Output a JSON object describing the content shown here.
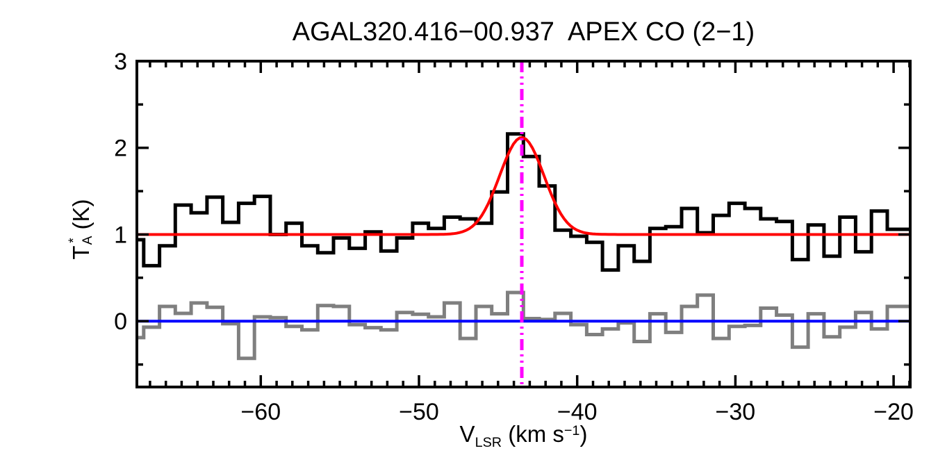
{
  "title": "AGAL320.416−00.937  APEX CO (2−1)",
  "axes": {
    "xlabel": {
      "base": "V",
      "sub": "LSR",
      "rest": " (km s",
      "sup": "−1",
      "close": ")"
    },
    "ylabel": {
      "base": "T",
      "sup": "*",
      "sub": "A",
      "unit": " (K)"
    },
    "x_tick_values": [
      -60,
      -50,
      -40,
      -30,
      -20
    ],
    "x_tick_labels": [
      "−60",
      "−50",
      "−40",
      "−30",
      "−20"
    ],
    "x_minor_step": 1,
    "y_tick_values": [
      0,
      1,
      2,
      3
    ],
    "y_tick_labels": [
      "0",
      "1",
      "2",
      "3"
    ],
    "y_minor_step": 0.5
  },
  "colors": {
    "spectrum": "#000000",
    "residual": "#7f7f7f",
    "fit": "#ff0000",
    "zero_line": "#0000ff",
    "marker": "#ff00ff",
    "frame": "#000000"
  },
  "chart_data": {
    "type": "line",
    "title": "AGAL320.416−00.937  APEX CO (2−1)",
    "xlabel": "V_LSR (km s^-1)",
    "ylabel": "T_A^* (K)",
    "xlim": [
      -67.83,
      -18.95
    ],
    "ylim": [
      -0.76,
      3.0
    ],
    "grid": false,
    "legend": "none",
    "channel_width_kms": 1.0,
    "x_channel_centers": [
      -67.9,
      -66.9,
      -65.9,
      -64.9,
      -63.9,
      -62.9,
      -61.9,
      -60.9,
      -59.9,
      -58.9,
      -57.9,
      -56.9,
      -55.9,
      -54.9,
      -53.9,
      -52.9,
      -51.9,
      -50.9,
      -49.9,
      -48.9,
      -47.9,
      -46.9,
      -45.9,
      -44.9,
      -43.9,
      -42.9,
      -41.9,
      -40.9,
      -39.9,
      -38.9,
      -37.9,
      -36.9,
      -35.9,
      -34.9,
      -33.9,
      -32.9,
      -31.9,
      -30.9,
      -29.9,
      -28.9,
      -27.9,
      -26.9,
      -25.9,
      -24.9,
      -23.9,
      -22.9,
      -21.9,
      -20.9,
      -19.9
    ],
    "series": [
      {
        "name": "co21_spectrum",
        "style": "histogram-step",
        "color": "#000000",
        "values": [
          0.94,
          0.64,
          0.87,
          1.34,
          1.25,
          1.43,
          1.14,
          1.36,
          1.44,
          1.0,
          1.13,
          0.87,
          0.79,
          0.96,
          0.84,
          1.03,
          0.81,
          0.96,
          1.13,
          1.07,
          1.2,
          1.18,
          1.13,
          1.49,
          2.16,
          1.9,
          1.56,
          1.05,
          0.98,
          0.91,
          0.59,
          0.87,
          0.69,
          1.07,
          1.09,
          1.3,
          1.02,
          1.22,
          1.36,
          1.3,
          1.18,
          1.15,
          0.71,
          1.11,
          0.75,
          1.2,
          0.8,
          1.27,
          1.06
        ]
      },
      {
        "name": "fit_residual",
        "style": "histogram-step",
        "color": "#7f7f7f",
        "values": [
          -0.19,
          -0.07,
          0.17,
          0.09,
          0.21,
          0.16,
          -0.03,
          -0.43,
          0.05,
          0.04,
          -0.06,
          -0.1,
          0.18,
          0.17,
          -0.04,
          -0.075,
          -0.1,
          0.1,
          0.08,
          0.05,
          0.21,
          -0.2,
          0.17,
          0.085,
          0.33,
          0.03,
          0.02,
          0.09,
          -0.04,
          -0.155,
          -0.09,
          -0.02,
          -0.235,
          0.085,
          -0.13,
          0.17,
          0.3,
          -0.2,
          -0.06,
          -0.05,
          0.15,
          0.07,
          -0.3,
          0.085,
          -0.18,
          -0.07,
          0.1,
          -0.09,
          0.17
        ]
      },
      {
        "name": "gaussian_fit",
        "style": "curve",
        "color": "#ff0000",
        "params": {
          "baseline": 1.0,
          "amplitude": 1.12,
          "center": -43.5,
          "fwhm": 3.3
        }
      },
      {
        "name": "zero_baseline",
        "style": "hline",
        "color": "#0000ff",
        "y": 0
      },
      {
        "name": "vlsr_marker",
        "style": "vline-dashdot",
        "color": "#ff00ff",
        "x": -43.5
      }
    ]
  }
}
